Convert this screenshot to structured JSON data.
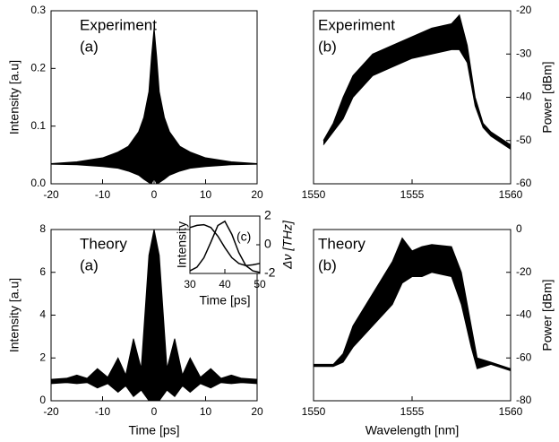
{
  "chart_data": [
    {
      "type": "area",
      "title": "Experiment",
      "label": "(a)",
      "ylabel": "Intensity [a.u]",
      "color": "#000000",
      "x": [
        -20,
        -15,
        -10,
        -7,
        -5,
        -3,
        -2,
        -1,
        -0.5,
        0,
        0.5,
        1,
        2,
        3,
        5,
        7,
        10,
        15,
        20
      ],
      "upper": [
        0.035,
        0.038,
        0.045,
        0.055,
        0.065,
        0.09,
        0.115,
        0.16,
        0.22,
        0.27,
        0.22,
        0.16,
        0.115,
        0.09,
        0.065,
        0.055,
        0.045,
        0.038,
        0.035
      ],
      "lower": [
        0.034,
        0.033,
        0.03,
        0.027,
        0.022,
        0.015,
        0.008,
        0.002,
        0.0,
        0.01,
        0.0,
        0.002,
        0.008,
        0.015,
        0.022,
        0.027,
        0.03,
        0.033,
        0.034
      ],
      "xlim": [
        -20,
        20
      ],
      "xticks": [
        -20,
        -10,
        0,
        10,
        20
      ],
      "ylim": [
        0,
        0.3
      ],
      "yticks": [
        {
          "value": 0,
          "label": "0.0"
        },
        0.1,
        0.2,
        0.3
      ]
    },
    {
      "type": "area",
      "title": "Experiment",
      "label": "(b)",
      "ylabel": "Power [dBm]",
      "y_axis_position": "right",
      "color": "#000000",
      "x": [
        1550.5,
        1551,
        1551.5,
        1552,
        1553,
        1554,
        1555,
        1556,
        1557,
        1557.4,
        1557.8,
        1558.2,
        1558.6,
        1559,
        1560
      ],
      "upper": [
        -50,
        -46,
        -40,
        -35,
        -30,
        -28,
        -26,
        -24,
        -23,
        -21,
        -28,
        -40,
        -46,
        -48,
        -51
      ],
      "lower": [
        -51,
        -48,
        -45,
        -40,
        -35,
        -33,
        -31,
        -30,
        -29,
        -29,
        -32,
        -42,
        -47,
        -49,
        -52
      ],
      "xlim": [
        1550,
        1560
      ],
      "xticks": [
        1550,
        1555,
        1560
      ],
      "ylim": [
        -60,
        -20
      ],
      "yticks": [
        -60,
        -50,
        -40,
        -30,
        -20
      ]
    },
    {
      "type": "area",
      "title": "Theory",
      "label": "(a)",
      "xlabel": "Time [ps]",
      "ylabel": "Intensity [a.u]",
      "color": "#000000",
      "x": [
        -20,
        -17,
        -15,
        -13,
        -11,
        -9,
        -7,
        -5.5,
        -4,
        -2.5,
        -1,
        0,
        1,
        2.5,
        4,
        5.5,
        7,
        9,
        11,
        13,
        15,
        17,
        20
      ],
      "upper": [
        1.0,
        1.05,
        1.2,
        1.05,
        1.5,
        1.1,
        2.0,
        1.2,
        2.9,
        1.5,
        6.8,
        8.0,
        6.8,
        1.5,
        2.9,
        1.2,
        2.0,
        1.1,
        1.5,
        1.05,
        1.2,
        1.05,
        1.0
      ],
      "lower": [
        0.8,
        0.85,
        0.8,
        0.85,
        0.6,
        0.8,
        0.4,
        0.7,
        0.2,
        0.5,
        0,
        0,
        0,
        0.5,
        0.2,
        0.7,
        0.4,
        0.8,
        0.6,
        0.85,
        0.8,
        0.85,
        0.8
      ],
      "xlim": [
        -20,
        20
      ],
      "xticks": [
        -20,
        -10,
        0,
        10,
        20
      ],
      "ylim": [
        0,
        8
      ],
      "yticks": [
        0,
        2,
        4,
        6,
        8
      ]
    },
    {
      "type": "area",
      "title": "Theory",
      "label": "(b)",
      "xlabel": "Wavelength [nm]",
      "ylabel": "Power [dBm]",
      "y_axis_position": "right",
      "color": "#000000",
      "x": [
        1550,
        1551,
        1551.5,
        1552,
        1553,
        1554,
        1554.5,
        1555,
        1555.5,
        1556,
        1557,
        1557.5,
        1558,
        1558.3,
        1559,
        1560
      ],
      "upper": [
        -63,
        -63,
        -58,
        -45,
        -30,
        -15,
        -4,
        -10,
        -8,
        -7,
        -8,
        -20,
        -45,
        -60,
        -62,
        -65
      ],
      "lower": [
        -64,
        -64,
        -62,
        -55,
        -45,
        -35,
        -25,
        -22,
        -22,
        -20,
        -22,
        -35,
        -55,
        -65,
        -63,
        -66
      ],
      "xlim": [
        1550,
        1560
      ],
      "xticks": [
        1550,
        1555,
        1560
      ],
      "ylim": [
        -80,
        0
      ],
      "yticks": [
        -80,
        -60,
        -40,
        -20,
        0
      ]
    },
    {
      "type": "line",
      "label": "(c)",
      "xlabel": "Time [ps]",
      "ylabel": "Intensity",
      "y2label": "Δν [THz]",
      "x": [
        30,
        32,
        34,
        36,
        38,
        40,
        42,
        44,
        46,
        48,
        50
      ],
      "series": [
        {
          "color": "#000000",
          "values": [
            0.05,
            0.12,
            0.3,
            0.6,
            0.92,
            1.0,
            0.75,
            0.4,
            0.15,
            0.05,
            0.02
          ]
        },
        {
          "color": "#000000",
          "axis": "y2",
          "values": [
            1.2,
            1.35,
            1.4,
            1.2,
            0.6,
            -0.2,
            -0.9,
            -1.3,
            -1.45,
            -1.4,
            -1.3
          ]
        }
      ],
      "xlim": [
        30,
        50
      ],
      "xticks": [
        30,
        40,
        50
      ],
      "ylim": [
        0,
        1.1
      ],
      "y2lim": [
        -2,
        2
      ],
      "y2ticks": [
        -2,
        0,
        2
      ]
    }
  ]
}
